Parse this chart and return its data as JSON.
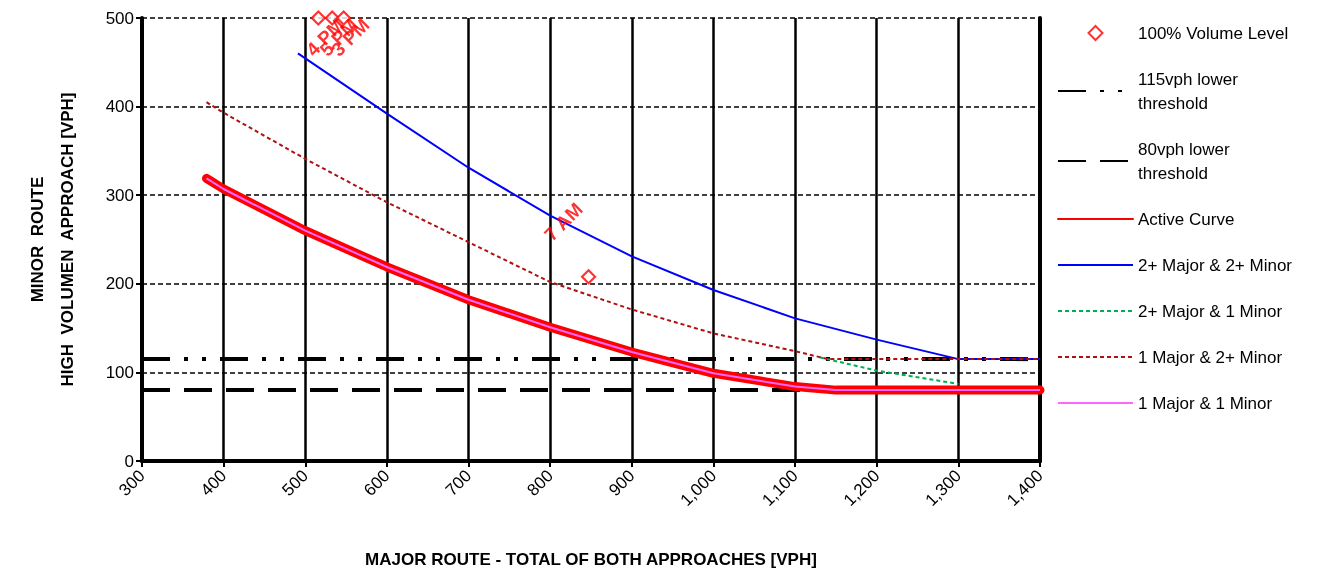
{
  "chart_data": {
    "type": "line",
    "xlabel": "MAJOR ROUTE - TOTAL OF BOTH APPROACHES [VPH]",
    "ylabel": "MINOR  ROUTE\nHIGH  VOLUMEN  APPROACH [VPH]",
    "xlim": [
      300,
      1400
    ],
    "xticks": [
      300,
      400,
      500,
      600,
      700,
      800,
      900,
      {
        "value": 1000,
        "label": "1,000"
      },
      {
        "value": 1100,
        "label": "1,100"
      },
      {
        "value": 1200,
        "label": "1,200"
      },
      {
        "value": 1300,
        "label": "1,300"
      },
      {
        "value": 1400,
        "label": "1,400"
      }
    ],
    "ylim": [
      0,
      500
    ],
    "yticks": [
      0,
      100,
      200,
      300,
      400,
      500
    ],
    "grid": true,
    "legend": "right",
    "series": [
      {
        "name": "100% Volume Level",
        "type": "scatter",
        "marker": "diamond",
        "color": "#ff0000",
        "x": [
          516,
          533,
          547,
          847
        ],
        "values": [
          500,
          500,
          500,
          208
        ]
      },
      {
        "name": "115vph lower threshold",
        "color": "#000000",
        "line_style": "dashed",
        "x": [
          300,
          1400
        ],
        "values": [
          115,
          115
        ]
      },
      {
        "name": "80vph lower threshold",
        "color": "#000000",
        "line_style": "dashed",
        "x": [
          300,
          1400
        ],
        "values": [
          80,
          80
        ]
      },
      {
        "name": "Active Curve",
        "color": "#ff0000",
        "x": [
          379,
          400,
          500,
          600,
          700,
          800,
          900,
          1000,
          1100,
          1150,
          1400
        ],
        "values": [
          319,
          307,
          260,
          219,
          182,
          151,
          123,
          99,
          84,
          80,
          80
        ]
      },
      {
        "name": "2+ Major & 2+ Minor",
        "color": "#0000ff",
        "x": [
          491,
          600,
          700,
          800,
          900,
          1000,
          1100,
          1200,
          1300,
          1400
        ],
        "values": [
          460,
          392,
          331,
          277,
          231,
          193,
          161,
          137,
          115,
          115
        ]
      },
      {
        "name": "2+ Major & 1 Minor",
        "color": "#00b050",
        "line_style": "dashed",
        "x": [
          1130,
          1200,
          1300
        ],
        "values": [
          117,
          102,
          87
        ]
      },
      {
        "name": "1 Major & 2+ Minor",
        "color": "#b01010",
        "line_style": "dashed",
        "x": [
          379,
          400,
          500,
          600,
          700,
          800,
          900,
          1000,
          1100,
          1140,
          1400
        ],
        "values": [
          405,
          393,
          341,
          292,
          247,
          202,
          171,
          144,
          124,
          115,
          115
        ]
      },
      {
        "name": "1 Major & 1 Minor",
        "color": "#ff66ff",
        "x": [
          379,
          400,
          500,
          600,
          700,
          800,
          900,
          1000,
          1100,
          1150,
          1400
        ],
        "values": [
          319,
          307,
          260,
          219,
          182,
          151,
          123,
          99,
          84,
          80,
          80
        ]
      }
    ],
    "annotations": [
      {
        "text": "4 PM",
        "x": 516,
        "y": 500
      },
      {
        "text": "5 PM",
        "x": 533,
        "y": 500
      },
      {
        "text": "3 PM",
        "x": 547,
        "y": 500
      },
      {
        "text": "7 AM",
        "x": 847,
        "y": 208
      }
    ]
  }
}
